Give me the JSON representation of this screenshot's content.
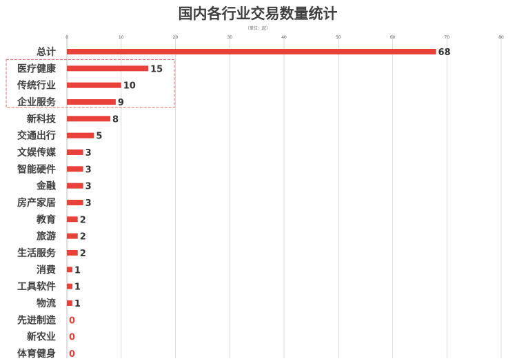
{
  "colors": {
    "bar": "#e8413a",
    "zero_label": "#e8413a",
    "highlight_border": "#e06b66"
  },
  "chart_data": {
    "type": "bar",
    "orientation": "horizontal",
    "title": "国内各行业交易数量统计",
    "unit_note": "（单位：起）",
    "xlim": [
      0,
      80
    ],
    "x_ticks": [
      0,
      10,
      20,
      30,
      40,
      50,
      60,
      70,
      80
    ],
    "grid": true,
    "categories": [
      "总计",
      "医疗健康",
      "传统行业",
      "企业服务",
      "新科技",
      "交通出行",
      "文娱传媒",
      "智能硬件",
      "金融",
      "房产家居",
      "教育",
      "旅游",
      "生活服务",
      "消费",
      "工具软件",
      "物流",
      "先进制造",
      "新农业",
      "体育健身"
    ],
    "values": [
      68,
      15,
      10,
      9,
      8,
      5,
      3,
      3,
      3,
      3,
      2,
      2,
      2,
      1,
      1,
      1,
      0,
      0,
      0
    ],
    "highlighted_categories": [
      "医疗健康",
      "传统行业",
      "企业服务"
    ]
  }
}
